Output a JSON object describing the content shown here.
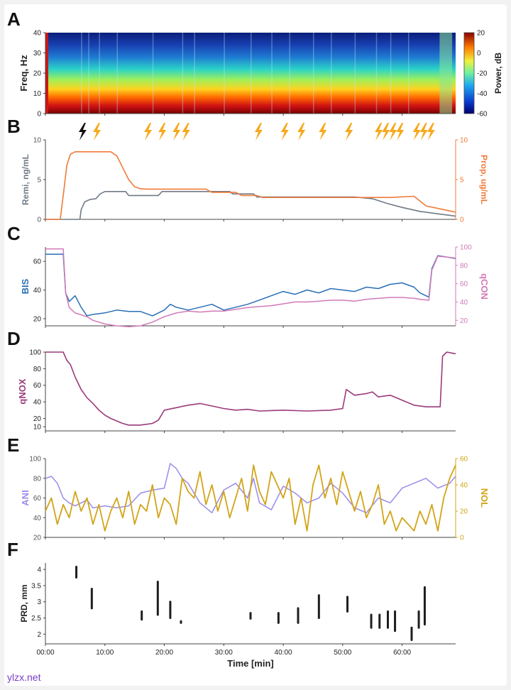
{
  "watermark": "ylzx.net",
  "colors": {
    "remi": "#707a86",
    "prop": "#f07a3a",
    "bis": "#2a6fb5",
    "qcon": "#d27ab8",
    "qnox": "#9a3a7a",
    "ani": "#9a8cec",
    "nol": "#d2a418",
    "prd": "#1e1e1e",
    "lightning_black": "#111111",
    "lightning_orange": "#f7a81c"
  },
  "chart_data": [
    {
      "id": "A",
      "panel_label": "A",
      "type": "heatmap",
      "ylabel": "Freq, Hz",
      "ylim": [
        0,
        40
      ],
      "yticks": [
        "0",
        "10",
        "20",
        "30",
        "40"
      ],
      "colorbar_label": "Power, dB",
      "colorbar_ticks": [
        "20",
        "0",
        "-20",
        "-40",
        "-60"
      ],
      "clim": [
        -60,
        20
      ],
      "xlim": [
        0,
        69
      ]
    },
    {
      "id": "B",
      "panel_label": "B",
      "type": "line",
      "xlim": [
        0,
        69
      ],
      "ylabel": "Remi, ng/mL",
      "ylim": [
        0,
        10
      ],
      "yticks": [
        "0",
        "5",
        "10"
      ],
      "ylabel_right": "Prop, ug/mL",
      "ylim_right": [
        0,
        10
      ],
      "yticks_right": [
        "0",
        "5",
        "10"
      ],
      "events": [
        {
          "t": 6.2,
          "kind": "black"
        },
        {
          "t": 8.6,
          "kind": "orange"
        },
        {
          "t": 17.2,
          "kind": "orange"
        },
        {
          "t": 19.6,
          "kind": "orange"
        },
        {
          "t": 22.0,
          "kind": "orange"
        },
        {
          "t": 23.6,
          "kind": "orange"
        },
        {
          "t": 35.8,
          "kind": "orange"
        },
        {
          "t": 40.2,
          "kind": "orange"
        },
        {
          "t": 43.0,
          "kind": "orange"
        },
        {
          "t": 46.6,
          "kind": "orange"
        },
        {
          "t": 51.0,
          "kind": "orange"
        },
        {
          "t": 56.0,
          "kind": "orange"
        },
        {
          "t": 57.2,
          "kind": "orange"
        },
        {
          "t": 58.4,
          "kind": "orange"
        },
        {
          "t": 59.6,
          "kind": "orange"
        },
        {
          "t": 62.4,
          "kind": "orange"
        },
        {
          "t": 63.6,
          "kind": "orange"
        },
        {
          "t": 64.8,
          "kind": "orange"
        }
      ],
      "series": [
        {
          "name": "Remi",
          "axis": "left",
          "color_key": "remi",
          "x": [
            0,
            5.8,
            6.0,
            6.6,
            7.5,
            8.5,
            9.2,
            10.0,
            11.0,
            13.5,
            14.0,
            19.0,
            19.6,
            31.0,
            31.5,
            35.0,
            35.6,
            52.0,
            55.0,
            57.5,
            60.0,
            63.0,
            66.0,
            69.0
          ],
          "y": [
            0,
            0,
            1.2,
            2.2,
            2.5,
            2.6,
            3.2,
            3.5,
            3.5,
            3.5,
            3.0,
            3.0,
            3.5,
            3.5,
            3.2,
            3.2,
            2.8,
            2.8,
            2.6,
            2.0,
            1.5,
            1.0,
            0.7,
            0.4
          ]
        },
        {
          "name": "Prop",
          "axis": "right",
          "color_key": "prop",
          "x": [
            0,
            2.5,
            3.0,
            3.6,
            4.2,
            5.0,
            11.0,
            12.0,
            13.0,
            14.0,
            15.0,
            16.0,
            17.0,
            27.0,
            28.0,
            32.0,
            33.0,
            35.5,
            36.5,
            58.0,
            62.0,
            64.0,
            69.0
          ],
          "y": [
            0,
            0,
            3.0,
            6.8,
            8.2,
            8.5,
            8.5,
            8.0,
            6.5,
            5.0,
            4.1,
            3.85,
            3.8,
            3.8,
            3.4,
            3.4,
            3.0,
            3.0,
            2.75,
            2.75,
            2.9,
            1.7,
            0.9
          ]
        }
      ]
    },
    {
      "id": "C",
      "panel_label": "C",
      "type": "line",
      "xlim": [
        0,
        69
      ],
      "ylabel": "BIS",
      "ylim": [
        15,
        70
      ],
      "yticks": [
        "20",
        "40",
        "60"
      ],
      "ylabel_right": "qCON",
      "ylim_right": [
        14,
        100
      ],
      "yticks_right": [
        "20",
        "40",
        "60",
        "80",
        "100"
      ],
      "series": [
        {
          "name": "BIS",
          "axis": "left",
          "color_key": "bis",
          "x": [
            0,
            3,
            3.4,
            4,
            5,
            6,
            7,
            8,
            10,
            12,
            14,
            16,
            18,
            20,
            21,
            22,
            24,
            26,
            28,
            30,
            32,
            34,
            36,
            38,
            40,
            42,
            44,
            46,
            48,
            50,
            52,
            54,
            56,
            58,
            60,
            62,
            63,
            64.5,
            65,
            66,
            69
          ],
          "y": [
            65,
            65,
            38,
            32,
            36,
            28,
            22,
            23,
            24,
            26,
            25,
            25,
            22,
            26,
            30,
            28,
            26,
            28,
            30,
            26,
            28,
            30,
            33,
            36,
            39,
            37,
            40,
            38,
            41,
            40,
            39,
            42,
            41,
            44,
            45,
            42,
            38,
            35,
            55,
            64,
            62
          ]
        },
        {
          "name": "qCON",
          "axis": "right",
          "color_key": "qcon",
          "x": [
            0,
            3,
            3.4,
            4,
            5,
            6,
            7,
            8,
            10,
            12,
            14,
            16,
            18,
            20,
            22,
            24,
            26,
            28,
            30,
            32,
            34,
            36,
            38,
            40,
            42,
            44,
            46,
            48,
            50,
            52,
            54,
            56,
            58,
            60,
            62,
            63,
            64.5,
            65,
            66,
            69
          ],
          "y": [
            98,
            98,
            50,
            34,
            28,
            26,
            24,
            20,
            16,
            14,
            13,
            14,
            18,
            24,
            28,
            30,
            29,
            30,
            30,
            32,
            34,
            35,
            36,
            38,
            40,
            40,
            41,
            42,
            42,
            41,
            43,
            44,
            45,
            45,
            44,
            43,
            42,
            75,
            90,
            88
          ]
        }
      ]
    },
    {
      "id": "D",
      "panel_label": "D",
      "type": "line",
      "xlim": [
        0,
        69
      ],
      "ylabel": "qNOX",
      "ylim": [
        5,
        100
      ],
      "yticks": [
        "20",
        "40",
        "60",
        "80",
        "100"
      ],
      "extra_yticks": [
        "10"
      ],
      "series": [
        {
          "name": "qNOX",
          "axis": "left",
          "color_key": "qnox",
          "x": [
            0,
            3,
            3.6,
            4.2,
            5,
            6,
            7,
            8,
            9,
            10,
            11,
            12,
            13,
            14,
            16,
            18,
            19,
            20,
            22,
            24,
            26,
            28,
            30,
            32,
            34,
            36,
            40,
            44,
            48,
            50,
            50.6,
            52,
            54,
            55,
            56,
            58,
            60,
            62,
            64,
            66.4,
            66.8,
            67.5,
            69
          ],
          "y": [
            100,
            100,
            90,
            85,
            70,
            55,
            45,
            38,
            30,
            24,
            20,
            17,
            14,
            12,
            12,
            14,
            18,
            30,
            33,
            36,
            38,
            35,
            32,
            30,
            31,
            29,
            30,
            29,
            30,
            32,
            55,
            48,
            50,
            52,
            46,
            48,
            42,
            36,
            34,
            34,
            95,
            100,
            98
          ]
        }
      ]
    },
    {
      "id": "E",
      "panel_label": "E",
      "type": "line",
      "xlim": [
        0,
        69
      ],
      "ylabel": "ANI",
      "ylim": [
        20,
        100
      ],
      "yticks": [
        "20",
        "40",
        "60",
        "80",
        "100"
      ],
      "ylabel_right": "NOL",
      "ylim_right": [
        0,
        60
      ],
      "yticks_right": [
        "0",
        "20",
        "40",
        "60"
      ],
      "series": [
        {
          "name": "ANI",
          "axis": "left",
          "color_key": "ani",
          "x": [
            0,
            1,
            2,
            3,
            4,
            5,
            6,
            7,
            8,
            10,
            12,
            14,
            16,
            18,
            20,
            21,
            22,
            23,
            24,
            26,
            28,
            30,
            32,
            34,
            35,
            36,
            38,
            40,
            42,
            44,
            46,
            48,
            50,
            52,
            54,
            56,
            58,
            60,
            62,
            64,
            66,
            68,
            69
          ],
          "y": [
            80,
            82,
            75,
            60,
            55,
            52,
            55,
            58,
            50,
            52,
            50,
            52,
            65,
            68,
            70,
            95,
            90,
            80,
            75,
            55,
            45,
            68,
            75,
            60,
            80,
            55,
            48,
            72,
            65,
            55,
            60,
            75,
            65,
            50,
            45,
            60,
            55,
            70,
            75,
            80,
            70,
            75,
            82
          ]
        },
        {
          "name": "NOL",
          "axis": "right",
          "color_key": "nol",
          "x": [
            0,
            1,
            2,
            3,
            4,
            5,
            6,
            7,
            8,
            9,
            10,
            11,
            12,
            13,
            14,
            15,
            16,
            17,
            18,
            19,
            20,
            21,
            22,
            23,
            24,
            25,
            26,
            27,
            28,
            29,
            30,
            31,
            32,
            33,
            34,
            35,
            36,
            37,
            38,
            39,
            40,
            41,
            42,
            43,
            44,
            45,
            46,
            47,
            48,
            49,
            50,
            51,
            52,
            53,
            54,
            55,
            56,
            57,
            58,
            59,
            60,
            61,
            62,
            63,
            64,
            65,
            66,
            67,
            68,
            69
          ],
          "y": [
            20,
            30,
            10,
            25,
            15,
            35,
            20,
            30,
            10,
            25,
            5,
            20,
            30,
            15,
            35,
            10,
            25,
            20,
            40,
            15,
            30,
            25,
            10,
            45,
            35,
            30,
            50,
            25,
            40,
            20,
            35,
            15,
            30,
            45,
            20,
            55,
            35,
            25,
            50,
            40,
            30,
            45,
            10,
            30,
            5,
            40,
            55,
            30,
            45,
            25,
            50,
            35,
            20,
            35,
            15,
            25,
            40,
            10,
            20,
            5,
            15,
            10,
            5,
            20,
            10,
            25,
            5,
            30,
            45,
            55
          ]
        }
      ]
    },
    {
      "id": "F",
      "panel_label": "F",
      "type": "scatter",
      "xlim": [
        0,
        69
      ],
      "xlabel": "Time [min]",
      "xticks": [
        "00:00",
        "10:00",
        "20:00",
        "30:00",
        "40:00",
        "50:00",
        "60:00"
      ],
      "ylabel": "PRD, mm",
      "ylim": [
        1.7,
        4.2
      ],
      "yticks": [
        "2",
        "2.5",
        "3",
        "3.5",
        "4"
      ],
      "segments": [
        {
          "t": 5.2,
          "y1": 3.75,
          "y2": 4.08
        },
        {
          "t": 7.8,
          "y1": 2.8,
          "y2": 3.4
        },
        {
          "t": 16.2,
          "y1": 2.45,
          "y2": 2.7
        },
        {
          "t": 18.9,
          "y1": 2.6,
          "y2": 3.62
        },
        {
          "t": 21.0,
          "y1": 2.5,
          "y2": 3.0
        },
        {
          "t": 22.8,
          "y1": 2.35,
          "y2": 2.4
        },
        {
          "t": 34.5,
          "y1": 2.48,
          "y2": 2.65
        },
        {
          "t": 39.2,
          "y1": 2.35,
          "y2": 2.65
        },
        {
          "t": 42.5,
          "y1": 2.35,
          "y2": 2.8
        },
        {
          "t": 46.0,
          "y1": 2.5,
          "y2": 3.2
        },
        {
          "t": 50.8,
          "y1": 2.7,
          "y2": 3.15
        },
        {
          "t": 54.8,
          "y1": 2.2,
          "y2": 2.6
        },
        {
          "t": 56.2,
          "y1": 2.2,
          "y2": 2.6
        },
        {
          "t": 57.6,
          "y1": 2.2,
          "y2": 2.7
        },
        {
          "t": 58.8,
          "y1": 2.1,
          "y2": 2.7
        },
        {
          "t": 61.6,
          "y1": 1.82,
          "y2": 2.2
        },
        {
          "t": 62.8,
          "y1": 2.2,
          "y2": 2.7
        },
        {
          "t": 63.8,
          "y1": 2.3,
          "y2": 3.45
        }
      ]
    }
  ]
}
